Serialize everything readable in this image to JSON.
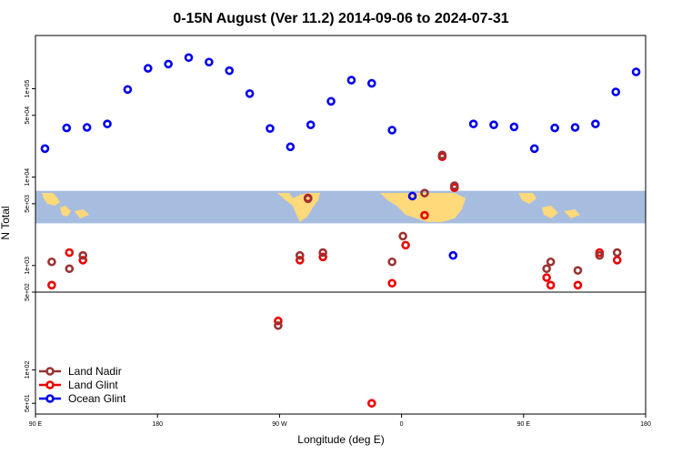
{
  "chart_data": {
    "type": "scatter",
    "title": "0-15N August (Ver 11.2)   2014-09-06 to 2024-07-31",
    "xlabel": "Longitude (deg E)",
    "ylabel": "N Total",
    "y_scale": "log",
    "x_ticks": [
      {
        "value": 90,
        "label": "90 E"
      },
      {
        "value": 180,
        "label": "180"
      },
      {
        "value": 270,
        "label": "90 W"
      },
      {
        "value": 360,
        "label": "0"
      },
      {
        "value": 450,
        "label": "90 E"
      },
      {
        "value": 540,
        "label": "180"
      }
    ],
    "panels": [
      {
        "name": "upper",
        "ylim": [
          500,
          400000
        ],
        "y_ticks": [
          {
            "value": 500,
            "label": "5e+02"
          },
          {
            "value": 1000,
            "label": "1e+03"
          },
          {
            "value": 5000,
            "label": "5e+03"
          },
          {
            "value": 10000,
            "label": "1e+04"
          },
          {
            "value": 50000,
            "label": "5e+04"
          },
          {
            "value": 100000,
            "label": "1e+05"
          }
        ]
      },
      {
        "name": "lower",
        "ylim": [
          40,
          500
        ],
        "y_ticks": [
          {
            "value": 50,
            "label": "5e+01"
          },
          {
            "value": 100,
            "label": "1e+02"
          },
          {
            "value": 500,
            "label": "5e+02"
          }
        ]
      }
    ],
    "map_band": {
      "y_range": [
        3000,
        7000
      ],
      "ocean_color": "#a7bddf",
      "land_color": "#ffd97a"
    },
    "series": [
      {
        "name": "Ocean Glint",
        "color": "#0000ee",
        "points": [
          [
            97,
            21000
          ],
          [
            113,
            36000
          ],
          [
            128,
            36500
          ],
          [
            143,
            40000
          ],
          [
            158,
            98000
          ],
          [
            173,
            170000
          ],
          [
            188,
            190000
          ],
          [
            203,
            225000
          ],
          [
            218,
            200000
          ],
          [
            233,
            160000
          ],
          [
            248,
            88000
          ],
          [
            263,
            35500
          ],
          [
            278,
            22000
          ],
          [
            293,
            39000
          ],
          [
            308,
            72000
          ],
          [
            323,
            125000
          ],
          [
            338,
            115000
          ],
          [
            353,
            34000
          ],
          [
            368,
            6100
          ],
          [
            398,
            1300
          ],
          [
            413,
            40000
          ],
          [
            428,
            39000
          ],
          [
            443,
            37000
          ],
          [
            458,
            21000
          ],
          [
            473,
            36000
          ],
          [
            488,
            36500
          ],
          [
            503,
            40000
          ],
          [
            518,
            92000
          ],
          [
            533,
            155000
          ]
        ]
      },
      {
        "name": "Land Glint",
        "color": "#ee0000",
        "points": [
          [
            102,
            600
          ],
          [
            115,
            1400
          ],
          [
            125,
            1150
          ],
          [
            269,
            275
          ],
          [
            285,
            1150
          ],
          [
            291,
            5800
          ],
          [
            302,
            1250
          ],
          [
            353,
            630
          ],
          [
            363,
            1700
          ],
          [
            377,
            3700
          ],
          [
            390,
            17000
          ],
          [
            399,
            7600
          ],
          [
            467,
            730
          ],
          [
            470,
            600
          ],
          [
            490,
            600
          ],
          [
            506,
            1400
          ],
          [
            519,
            1150
          ],
          [
            338,
            50
          ]
        ]
      },
      {
        "name": "Land Nadir",
        "color": "#993333",
        "points": [
          [
            102,
            1100
          ],
          [
            115,
            920
          ],
          [
            125,
            1300
          ],
          [
            269,
            250
          ],
          [
            285,
            1300
          ],
          [
            291,
            5700
          ],
          [
            302,
            1400
          ],
          [
            353,
            1100
          ],
          [
            361,
            2150
          ],
          [
            377,
            6600
          ],
          [
            390,
            17800
          ],
          [
            399,
            8000
          ],
          [
            467,
            920
          ],
          [
            470,
            1100
          ],
          [
            490,
            880
          ],
          [
            506,
            1300
          ],
          [
            519,
            1400
          ]
        ]
      }
    ]
  }
}
